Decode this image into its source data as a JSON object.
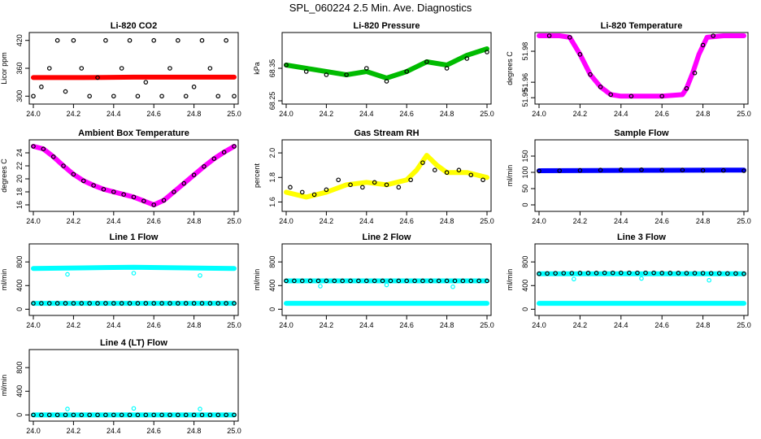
{
  "title": "SPL_060224  2.5 Min. Ave. Diagnostics",
  "chart_data": [
    {
      "type": "scatter",
      "title": "Li-820 CO2",
      "xlabel": "",
      "ylabel": "Licor ppm",
      "xlim": [
        24.0,
        25.0
      ],
      "ylim": [
        290,
        430
      ],
      "xticks": [
        24.0,
        24.2,
        24.4,
        24.6,
        24.8,
        25.0
      ],
      "yticks": [
        300,
        360,
        420
      ],
      "series": [
        {
          "color": "#ff0000",
          "style": "band",
          "x": [
            24.0,
            24.25,
            24.5,
            24.75,
            25.0
          ],
          "y": [
            340,
            340,
            341,
            341,
            341
          ]
        },
        {
          "color": "#000000",
          "style": "ring",
          "x": [
            24.0,
            24.04,
            24.08,
            24.12,
            24.16,
            24.2,
            24.24,
            24.28,
            24.32,
            24.36,
            24.4,
            24.44,
            24.48,
            24.52,
            24.56,
            24.6,
            24.64,
            24.68,
            24.72,
            24.76,
            24.8,
            24.84,
            24.88,
            24.92,
            24.96,
            25.0
          ],
          "y": [
            300,
            320,
            360,
            420,
            310,
            420,
            360,
            300,
            340,
            420,
            300,
            360,
            420,
            300,
            330,
            420,
            300,
            360,
            420,
            300,
            320,
            420,
            360,
            300,
            420,
            300
          ]
        }
      ]
    },
    {
      "type": "scatter",
      "title": "Li-820 Pressure",
      "xlabel": "",
      "ylabel": "kPa",
      "xlim": [
        24.0,
        25.0
      ],
      "ylim": [
        68.25,
        68.45
      ],
      "xticks": [
        24.0,
        24.2,
        24.4,
        24.6,
        24.8,
        25.0
      ],
      "yticks": [
        68.25,
        68.35
      ],
      "series": [
        {
          "color": "#00bb00",
          "style": "band",
          "x": [
            24.0,
            24.1,
            24.2,
            24.3,
            24.4,
            24.5,
            24.6,
            24.7,
            24.8,
            24.9,
            25.0
          ],
          "y": [
            68.36,
            68.35,
            68.34,
            68.33,
            68.34,
            68.32,
            68.34,
            68.37,
            68.36,
            68.39,
            68.41
          ]
        },
        {
          "color": "#000000",
          "style": "ring",
          "x": [
            24.0,
            24.1,
            24.2,
            24.3,
            24.4,
            24.5,
            24.6,
            24.7,
            24.8,
            24.9,
            25.0
          ],
          "y": [
            68.36,
            68.34,
            68.33,
            68.33,
            68.35,
            68.31,
            68.34,
            68.37,
            68.35,
            68.38,
            68.4
          ]
        }
      ]
    },
    {
      "type": "scatter",
      "title": "Li-820 Temperature",
      "xlabel": "",
      "ylabel": "degrees C",
      "xlim": [
        24.0,
        25.0
      ],
      "ylim": [
        51.948,
        51.99
      ],
      "xticks": [
        24.0,
        24.2,
        24.4,
        24.6,
        24.8,
        25.0
      ],
      "yticks": [
        51.95,
        51.96,
        51.98
      ],
      "series": [
        {
          "color": "#ff00ff",
          "style": "band",
          "x": [
            24.0,
            24.1,
            24.15,
            24.2,
            24.25,
            24.3,
            24.35,
            24.4,
            24.5,
            24.6,
            24.7,
            24.72,
            24.75,
            24.78,
            24.82,
            24.9,
            25.0
          ],
          "y": [
            51.99,
            51.99,
            51.989,
            51.978,
            51.965,
            51.957,
            51.952,
            51.951,
            51.951,
            51.951,
            51.952,
            51.956,
            51.966,
            51.978,
            51.989,
            51.99,
            51.99
          ]
        },
        {
          "color": "#000000",
          "style": "ring",
          "x": [
            24.05,
            24.15,
            24.2,
            24.25,
            24.3,
            24.35,
            24.45,
            24.6,
            24.72,
            24.76,
            24.8,
            24.85
          ],
          "y": [
            51.99,
            51.989,
            51.978,
            51.965,
            51.957,
            51.952,
            51.951,
            51.951,
            51.956,
            51.966,
            51.984,
            51.99
          ]
        }
      ]
    },
    {
      "type": "scatter",
      "title": "Ambient Box Temperature",
      "xlabel": "",
      "ylabel": "degrees C",
      "xlim": [
        24.0,
        25.0
      ],
      "ylim": [
        15.5,
        25.5
      ],
      "xticks": [
        24.0,
        24.2,
        24.4,
        24.6,
        24.8,
        25.0
      ],
      "yticks": [
        16,
        18,
        20,
        22,
        24
      ],
      "series": [
        {
          "color": "#ff00ff",
          "style": "band",
          "x": [
            24.0,
            24.05,
            24.1,
            24.15,
            24.2,
            24.25,
            24.3,
            24.35,
            24.4,
            24.45,
            24.5,
            24.55,
            24.6,
            24.65,
            24.7,
            24.75,
            24.8,
            24.85,
            24.9,
            24.95,
            25.0
          ],
          "y": [
            25.0,
            24.6,
            23.4,
            22.0,
            20.7,
            19.7,
            19.0,
            18.4,
            18.0,
            17.6,
            17.2,
            16.6,
            16.0,
            16.7,
            18.0,
            19.3,
            20.6,
            21.9,
            23.1,
            24.1,
            25.0
          ]
        },
        {
          "color": "#000000",
          "style": "ring",
          "x": [
            24.0,
            24.05,
            24.1,
            24.15,
            24.2,
            24.25,
            24.3,
            24.35,
            24.4,
            24.45,
            24.5,
            24.55,
            24.6,
            24.65,
            24.7,
            24.75,
            24.8,
            24.85,
            24.9,
            24.95,
            25.0
          ],
          "y": [
            25.0,
            24.6,
            23.4,
            22.0,
            20.7,
            19.7,
            19.0,
            18.4,
            18.0,
            17.6,
            17.2,
            16.6,
            16.0,
            16.7,
            18.0,
            19.3,
            20.6,
            21.9,
            23.1,
            24.1,
            25.0
          ]
        }
      ]
    },
    {
      "type": "scatter",
      "title": "Gas Stream RH",
      "xlabel": "",
      "ylabel": "percent",
      "xlim": [
        24.0,
        25.0
      ],
      "ylim": [
        1.55,
        2.08
      ],
      "xticks": [
        24.0,
        24.2,
        24.4,
        24.6,
        24.8,
        25.0
      ],
      "yticks": [
        1.6,
        1.8,
        2.0
      ],
      "series": [
        {
          "color": "#ffff00",
          "style": "band",
          "x": [
            24.0,
            24.1,
            24.2,
            24.3,
            24.4,
            24.5,
            24.6,
            24.65,
            24.7,
            24.75,
            24.8,
            24.9,
            25.0
          ],
          "y": [
            1.68,
            1.64,
            1.68,
            1.74,
            1.76,
            1.74,
            1.78,
            1.86,
            1.98,
            1.9,
            1.84,
            1.84,
            1.8
          ]
        },
        {
          "color": "#000000",
          "style": "ring",
          "x": [
            24.02,
            24.08,
            24.14,
            24.2,
            24.26,
            24.32,
            24.38,
            24.44,
            24.5,
            24.56,
            24.62,
            24.68,
            24.74,
            24.8,
            24.86,
            24.92,
            24.98
          ],
          "y": [
            1.72,
            1.68,
            1.66,
            1.7,
            1.78,
            1.74,
            1.72,
            1.76,
            1.74,
            1.72,
            1.78,
            1.92,
            1.86,
            1.84,
            1.86,
            1.82,
            1.78
          ]
        }
      ]
    },
    {
      "type": "scatter",
      "title": "Sample Flow",
      "xlabel": "",
      "ylabel": "ml/min",
      "xlim": [
        24.0,
        25.0
      ],
      "ylim": [
        -10,
        190
      ],
      "xticks": [
        24.0,
        24.2,
        24.4,
        24.6,
        24.8,
        25.0
      ],
      "yticks": [
        0,
        50,
        100,
        150
      ],
      "series": [
        {
          "color": "#0000ff",
          "style": "band",
          "x": [
            24.0,
            25.0
          ],
          "y": [
            105,
            107
          ]
        },
        {
          "color": "#000000",
          "style": "ring",
          "x": [
            24.0,
            24.1,
            24.2,
            24.3,
            24.4,
            24.5,
            24.6,
            24.7,
            24.8,
            24.9,
            25.0
          ],
          "y": [
            104,
            105,
            106,
            107,
            108,
            108,
            107,
            107,
            106,
            106,
            105
          ]
        }
      ]
    },
    {
      "type": "scatter",
      "title": "Line 1 Flow",
      "xlabel": "",
      "ylabel": "ml/min",
      "xlim": [
        24.0,
        25.0
      ],
      "ylim": [
        -50,
        1050
      ],
      "xticks": [
        24.0,
        24.2,
        24.4,
        24.6,
        24.8,
        25.0
      ],
      "yticks": [
        0,
        400,
        800
      ],
      "series": [
        {
          "color": "#00ffff",
          "style": "band",
          "x": [
            24.0,
            24.25,
            24.5,
            24.75,
            25.0
          ],
          "y": [
            690,
            700,
            710,
            700,
            690
          ]
        },
        {
          "color": "#00ffff",
          "style": "band",
          "x": [
            24.0,
            25.0
          ],
          "y": [
            100,
            100
          ]
        },
        {
          "color": "#000000",
          "style": "ring",
          "x": [
            24.0,
            24.04,
            24.08,
            24.12,
            24.16,
            24.2,
            24.24,
            24.28,
            24.32,
            24.36,
            24.4,
            24.44,
            24.48,
            24.52,
            24.56,
            24.6,
            24.64,
            24.68,
            24.72,
            24.76,
            24.8,
            24.84,
            24.88,
            24.92,
            24.96,
            25.0
          ],
          "y": [
            100,
            100,
            100,
            100,
            100,
            100,
            100,
            100,
            100,
            100,
            100,
            100,
            100,
            100,
            100,
            100,
            100,
            100,
            100,
            100,
            100,
            100,
            100,
            100,
            100,
            100
          ]
        },
        {
          "color": "#00ffff",
          "style": "ring",
          "x": [
            24.17,
            24.5,
            24.83
          ],
          "y": [
            590,
            610,
            570
          ]
        }
      ]
    },
    {
      "type": "scatter",
      "title": "Line 2 Flow",
      "xlabel": "",
      "ylabel": "ml/min",
      "xlim": [
        24.0,
        25.0
      ],
      "ylim": [
        -50,
        1050
      ],
      "xticks": [
        24.0,
        24.2,
        24.4,
        24.6,
        24.8,
        25.0
      ],
      "yticks": [
        0,
        400,
        800
      ],
      "series": [
        {
          "color": "#00ffff",
          "style": "band",
          "x": [
            24.0,
            25.0
          ],
          "y": [
            480,
            480
          ]
        },
        {
          "color": "#00ffff",
          "style": "band",
          "x": [
            24.0,
            25.0
          ],
          "y": [
            100,
            100
          ]
        },
        {
          "color": "#000000",
          "style": "ring",
          "x": [
            24.0,
            24.04,
            24.08,
            24.12,
            24.16,
            24.2,
            24.24,
            24.28,
            24.32,
            24.36,
            24.4,
            24.44,
            24.48,
            24.52,
            24.56,
            24.6,
            24.64,
            24.68,
            24.72,
            24.76,
            24.8,
            24.84,
            24.88,
            24.92,
            24.96,
            25.0
          ],
          "y": [
            480,
            480,
            480,
            480,
            480,
            480,
            480,
            480,
            480,
            480,
            480,
            480,
            480,
            480,
            480,
            480,
            480,
            480,
            480,
            480,
            480,
            480,
            480,
            480,
            480,
            480
          ]
        },
        {
          "color": "#00ffff",
          "style": "ring",
          "x": [
            24.17,
            24.5,
            24.83
          ],
          "y": [
            390,
            410,
            380
          ]
        }
      ]
    },
    {
      "type": "scatter",
      "title": "Line 3 Flow",
      "xlabel": "",
      "ylabel": "ml/min",
      "xlim": [
        24.0,
        25.0
      ],
      "ylim": [
        -50,
        1050
      ],
      "xticks": [
        24.0,
        24.2,
        24.4,
        24.6,
        24.8,
        25.0
      ],
      "yticks": [
        0,
        400,
        800
      ],
      "series": [
        {
          "color": "#00ffff",
          "style": "band",
          "x": [
            24.0,
            25.0
          ],
          "y": [
            600,
            600
          ]
        },
        {
          "color": "#00ffff",
          "style": "band",
          "x": [
            24.0,
            25.0
          ],
          "y": [
            100,
            100
          ]
        },
        {
          "color": "#000000",
          "style": "ring",
          "x": [
            24.0,
            24.04,
            24.08,
            24.12,
            24.16,
            24.2,
            24.24,
            24.28,
            24.32,
            24.36,
            24.4,
            24.44,
            24.48,
            24.52,
            24.56,
            24.6,
            24.64,
            24.68,
            24.72,
            24.76,
            24.8,
            24.84,
            24.88,
            24.92,
            24.96,
            25.0
          ],
          "y": [
            600,
            605,
            608,
            610,
            610,
            612,
            612,
            612,
            615,
            615,
            615,
            615,
            615,
            615,
            615,
            612,
            612,
            612,
            610,
            610,
            610,
            608,
            608,
            605,
            605,
            600
          ]
        },
        {
          "color": "#00ffff",
          "style": "ring",
          "x": [
            24.17,
            24.5,
            24.83
          ],
          "y": [
            510,
            520,
            490
          ]
        }
      ]
    },
    {
      "type": "scatter",
      "title": "Line 4 (LT) Flow",
      "xlabel": "",
      "ylabel": "ml/min",
      "xlim": [
        24.0,
        25.0
      ],
      "ylim": [
        -50,
        1050
      ],
      "xticks": [
        24.0,
        24.2,
        24.4,
        24.6,
        24.8,
        25.0
      ],
      "yticks": [
        0,
        400,
        800
      ],
      "series": [
        {
          "color": "#00ffff",
          "style": "band",
          "x": [
            24.0,
            25.0
          ],
          "y": [
            0,
            0
          ]
        },
        {
          "color": "#000000",
          "style": "ring",
          "x": [
            24.0,
            24.04,
            24.08,
            24.12,
            24.16,
            24.2,
            24.24,
            24.28,
            24.32,
            24.36,
            24.4,
            24.44,
            24.48,
            24.52,
            24.56,
            24.6,
            24.64,
            24.68,
            24.72,
            24.76,
            24.8,
            24.84,
            24.88,
            24.92,
            24.96,
            25.0
          ],
          "y": [
            0,
            0,
            0,
            0,
            0,
            0,
            0,
            0,
            0,
            0,
            0,
            0,
            0,
            0,
            0,
            0,
            0,
            0,
            0,
            0,
            0,
            0,
            0,
            0,
            0,
            0
          ]
        },
        {
          "color": "#00ffff",
          "style": "ring",
          "x": [
            24.17,
            24.5,
            24.83
          ],
          "y": [
            100,
            110,
            100
          ]
        }
      ]
    }
  ]
}
